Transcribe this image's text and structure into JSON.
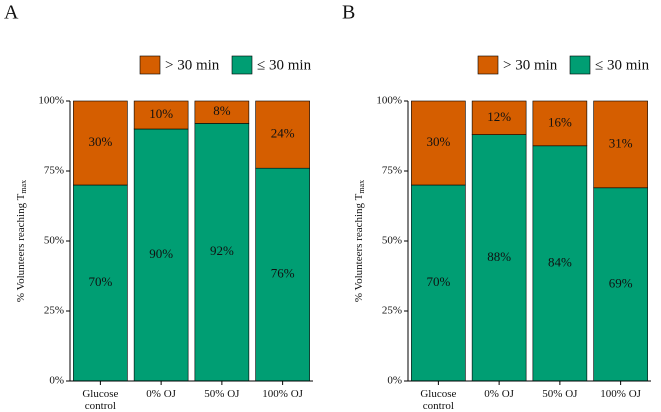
{
  "chart_data": [
    {
      "type": "stacked_bar",
      "panel": "A",
      "y_label": "% Volunteers reaching T",
      "y_label_sub": "max",
      "categories": [
        "Glucose\ncontrol",
        "0% OJ",
        "50% OJ",
        "100% OJ"
      ],
      "series": [
        {
          "name": "≤ 30 min",
          "color": "#009e73",
          "values": [
            70,
            90,
            92,
            76
          ],
          "value_labels": [
            "70%",
            "90%",
            "92%",
            "76%"
          ]
        },
        {
          "name": "> 30 min",
          "color": "#d55e00",
          "values": [
            30,
            10,
            8,
            24
          ],
          "value_labels": [
            "30%",
            "10%",
            "8%",
            "24%"
          ]
        }
      ],
      "ylim": [
        0,
        100
      ],
      "yticks": [
        {
          "value": 0,
          "label": "0%"
        },
        {
          "value": 25,
          "label": "25%"
        },
        {
          "value": 50,
          "label": "50%"
        },
        {
          "value": 75,
          "label": "75%"
        },
        {
          "value": 100,
          "label": "100%"
        }
      ]
    },
    {
      "type": "stacked_bar",
      "panel": "B",
      "y_label": "% Volunteers reaching T",
      "y_label_sub": "max",
      "categories": [
        "Glucose\ncontrol",
        "0% OJ",
        "50% OJ",
        "100% OJ"
      ],
      "series": [
        {
          "name": "≤ 30 min",
          "color": "#009e73",
          "values": [
            70,
            88,
            84,
            69
          ],
          "value_labels": [
            "70%",
            "88%",
            "84%",
            "69%"
          ]
        },
        {
          "name": "> 30 min",
          "color": "#d55e00",
          "values": [
            30,
            12,
            16,
            31
          ],
          "value_labels": [
            "30%",
            "12%",
            "16%",
            "31%"
          ]
        }
      ],
      "ylim": [
        0,
        100
      ],
      "yticks": [
        {
          "value": 0,
          "label": "0%"
        },
        {
          "value": 25,
          "label": "25%"
        },
        {
          "value": 50,
          "label": "50%"
        },
        {
          "value": 75,
          "label": "75%"
        },
        {
          "value": 100,
          "label": "100%"
        }
      ]
    }
  ]
}
